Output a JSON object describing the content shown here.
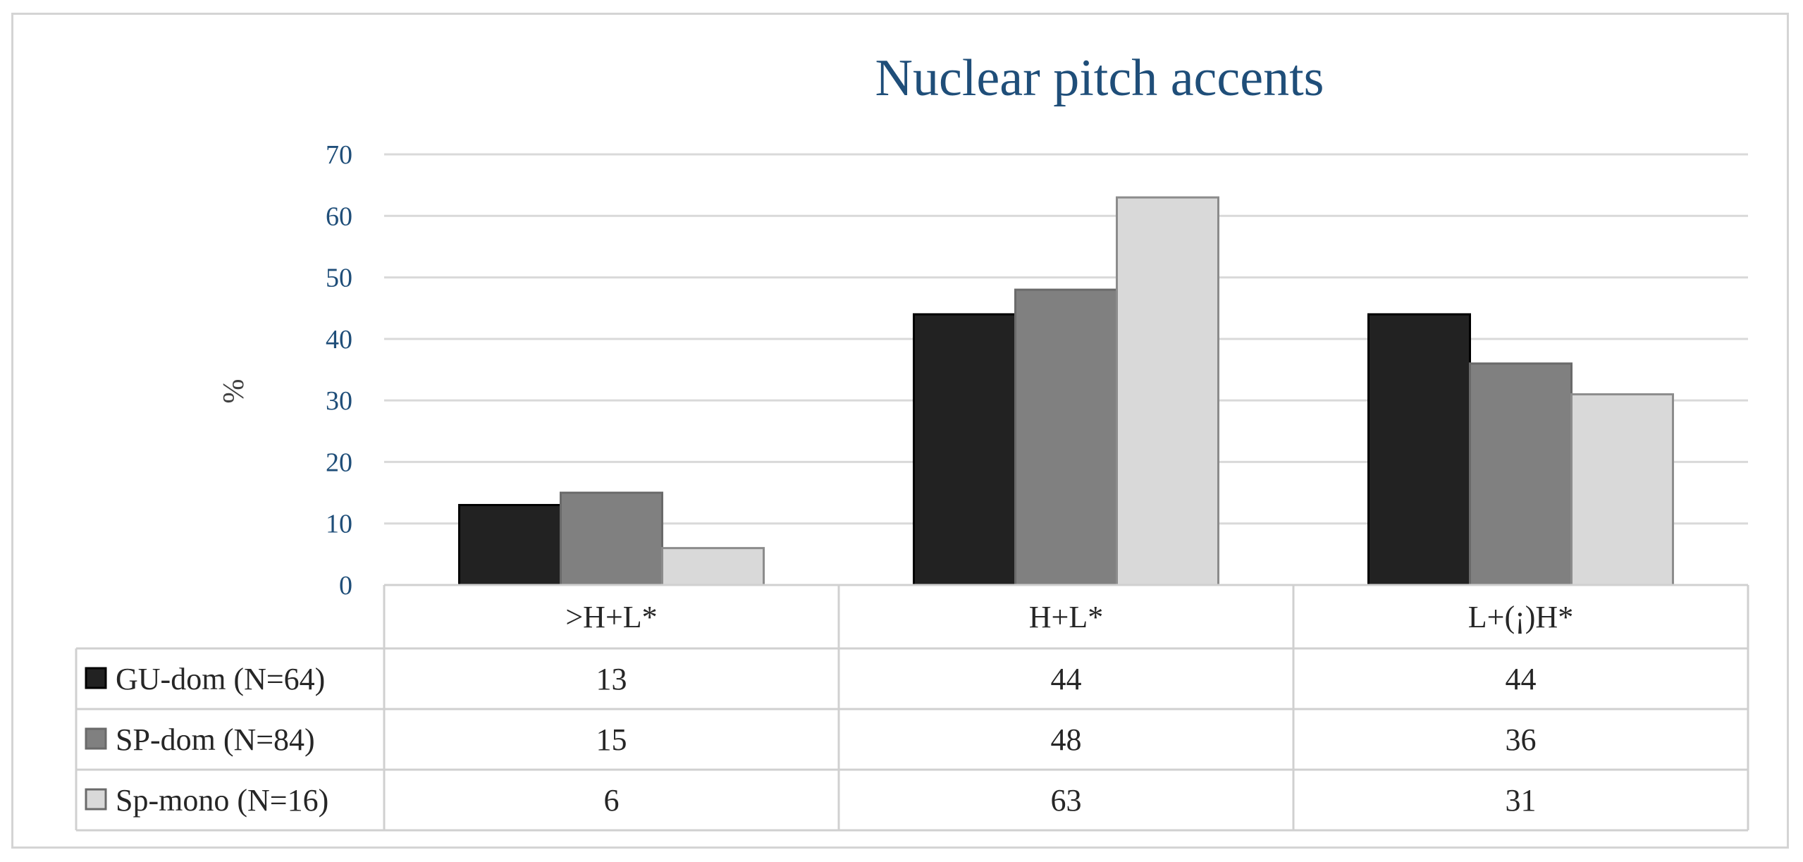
{
  "chart_data": {
    "type": "bar",
    "title": "Nuclear pitch accents",
    "ylabel": "%",
    "xlabel": "",
    "ylim": [
      0,
      70
    ],
    "yticks": [
      0,
      10,
      20,
      30,
      40,
      50,
      60,
      70
    ],
    "grid": true,
    "legend": "data-table-left",
    "categories": [
      ">H+L*",
      "H+L*",
      "L+(¡)H*"
    ],
    "series": [
      {
        "name": "GU-dom (N=64)",
        "values": [
          13,
          44,
          44
        ],
        "color": "#222222"
      },
      {
        "name": "SP-dom (N=84)",
        "values": [
          15,
          48,
          36
        ],
        "color": "#808080"
      },
      {
        "name": "Sp-mono (N=16)",
        "values": [
          6,
          63,
          31
        ],
        "color": "#d9d9d9"
      }
    ]
  }
}
